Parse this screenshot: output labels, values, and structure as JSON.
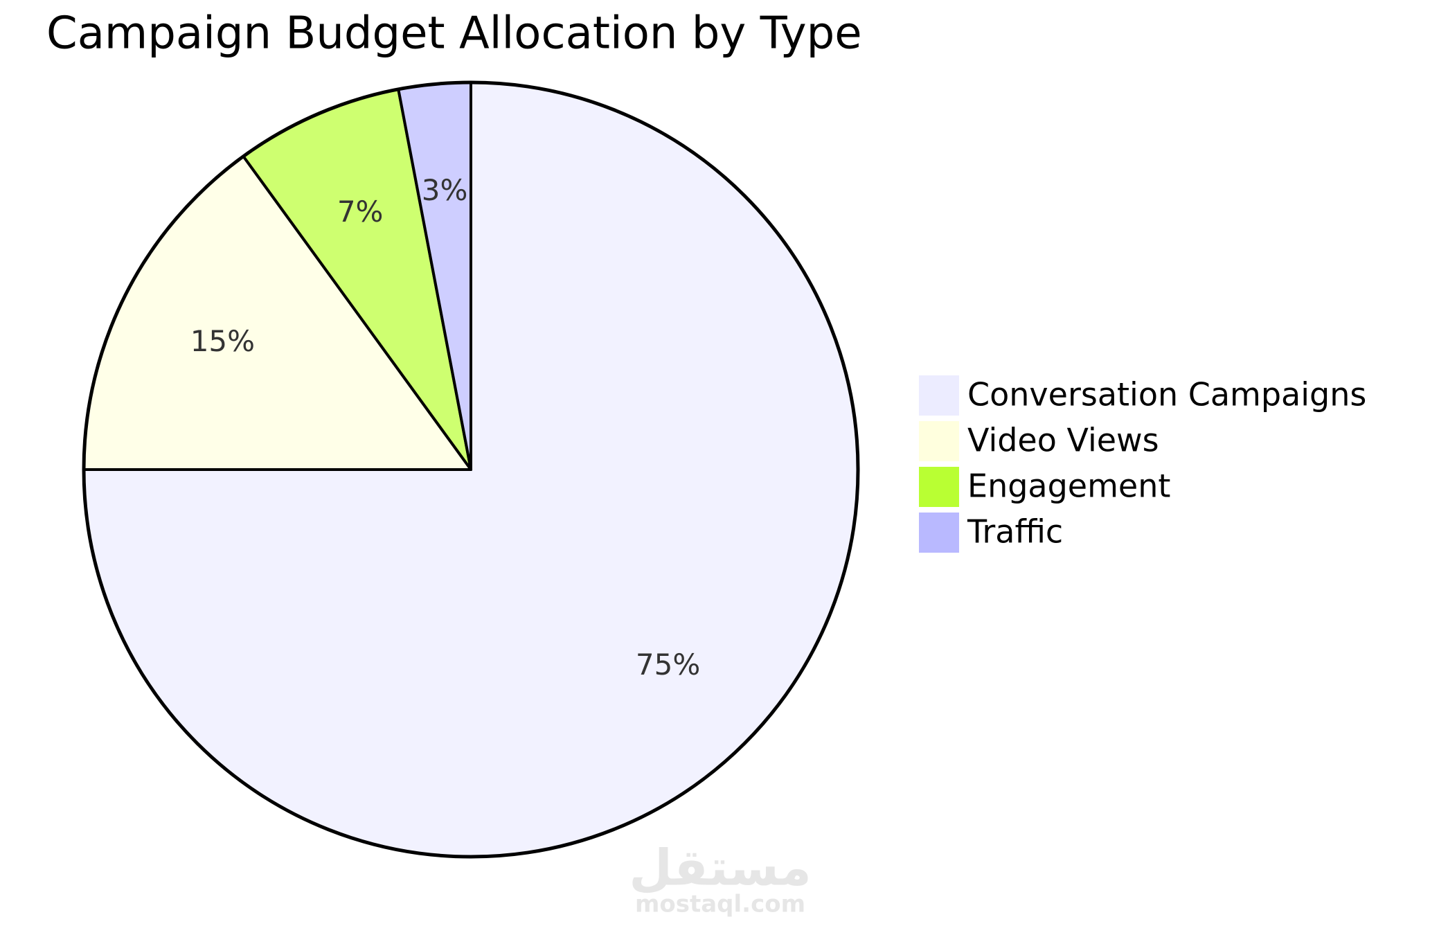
{
  "chart_data": {
    "type": "pie",
    "title": "Campaign Budget Allocation by Type",
    "categories": [
      "Conversation Campaigns",
      "Video Views",
      "Engagement",
      "Traffic"
    ],
    "values": [
      75,
      15,
      7,
      3
    ],
    "value_labels": [
      "75%",
      "15%",
      "7%",
      "3%"
    ],
    "colors": [
      "#ececff",
      "#ffffde",
      "#b9ff33",
      "#b9b9ff"
    ],
    "legend": "right"
  },
  "watermark": {
    "text": "مستقل",
    "url": "mostaql.com"
  }
}
